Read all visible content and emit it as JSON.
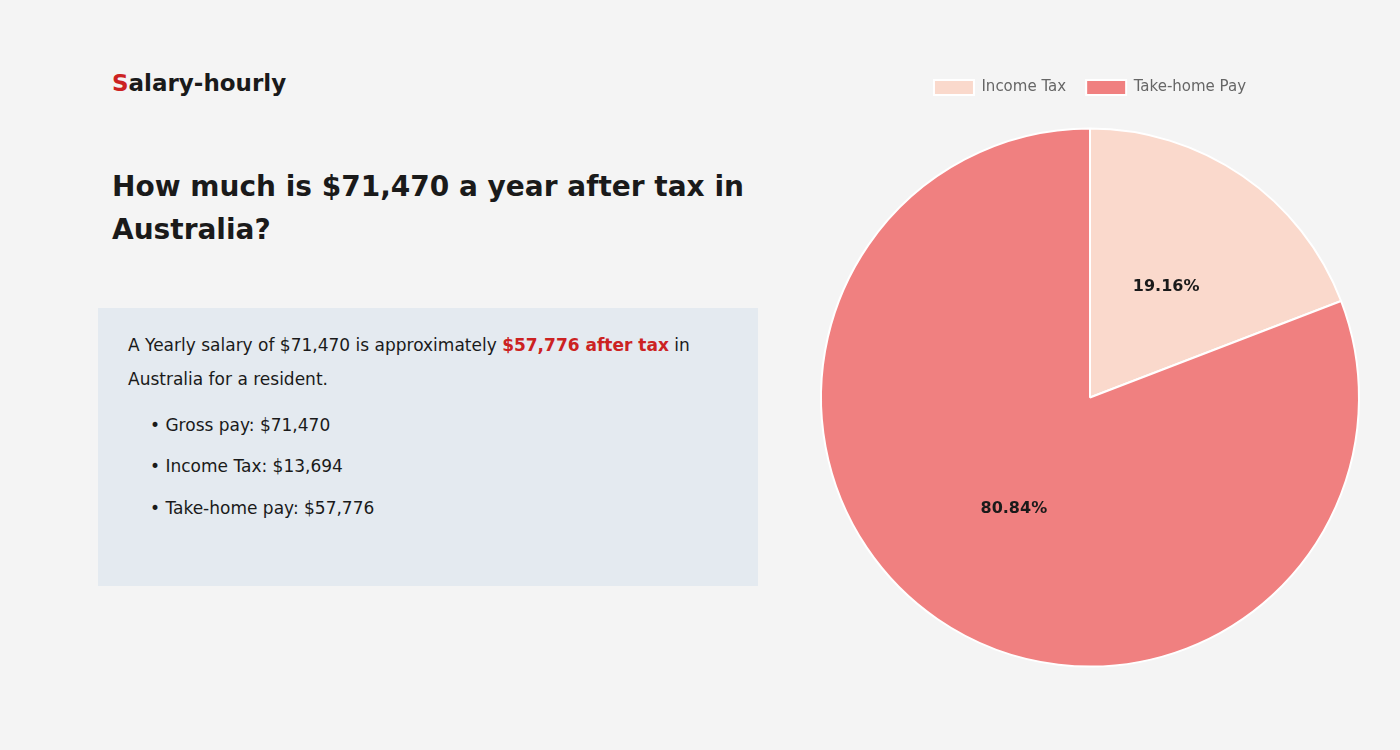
{
  "chart_data": {
    "type": "pie",
    "title": [
      "How much is $71,470 a year after tax in",
      "Australia?"
    ],
    "categories": [
      "Income Tax",
      "Take-home Pay"
    ],
    "values": [
      19.16,
      80.84
    ],
    "value_labels": [
      "19.16%",
      "80.84%"
    ],
    "colors": [
      "#fad9cc",
      "#f08080"
    ],
    "data_labels": true,
    "legend": "top",
    "annotations": [
      [
        {
          "text": "S",
          "color": "#cc2222"
        },
        {
          "text": "alary-hourly"
        }
      ],
      [
        {
          "text": "A Yearly salary of $71,470 is approximately "
        },
        {
          "text": "$57,776 after tax",
          "color": "#cc2222"
        },
        {
          "text": " in"
        }
      ],
      [
        {
          "text": "Australia for a resident."
        }
      ],
      [
        {
          "text": "• "
        },
        {
          "text": "Gross pay: $71,470"
        }
      ],
      [
        {
          "text": "• "
        },
        {
          "text": "Income Tax: $13,694"
        }
      ],
      [
        {
          "text": "• "
        },
        {
          "text": "Take-home pay: $57,776"
        }
      ]
    ]
  }
}
